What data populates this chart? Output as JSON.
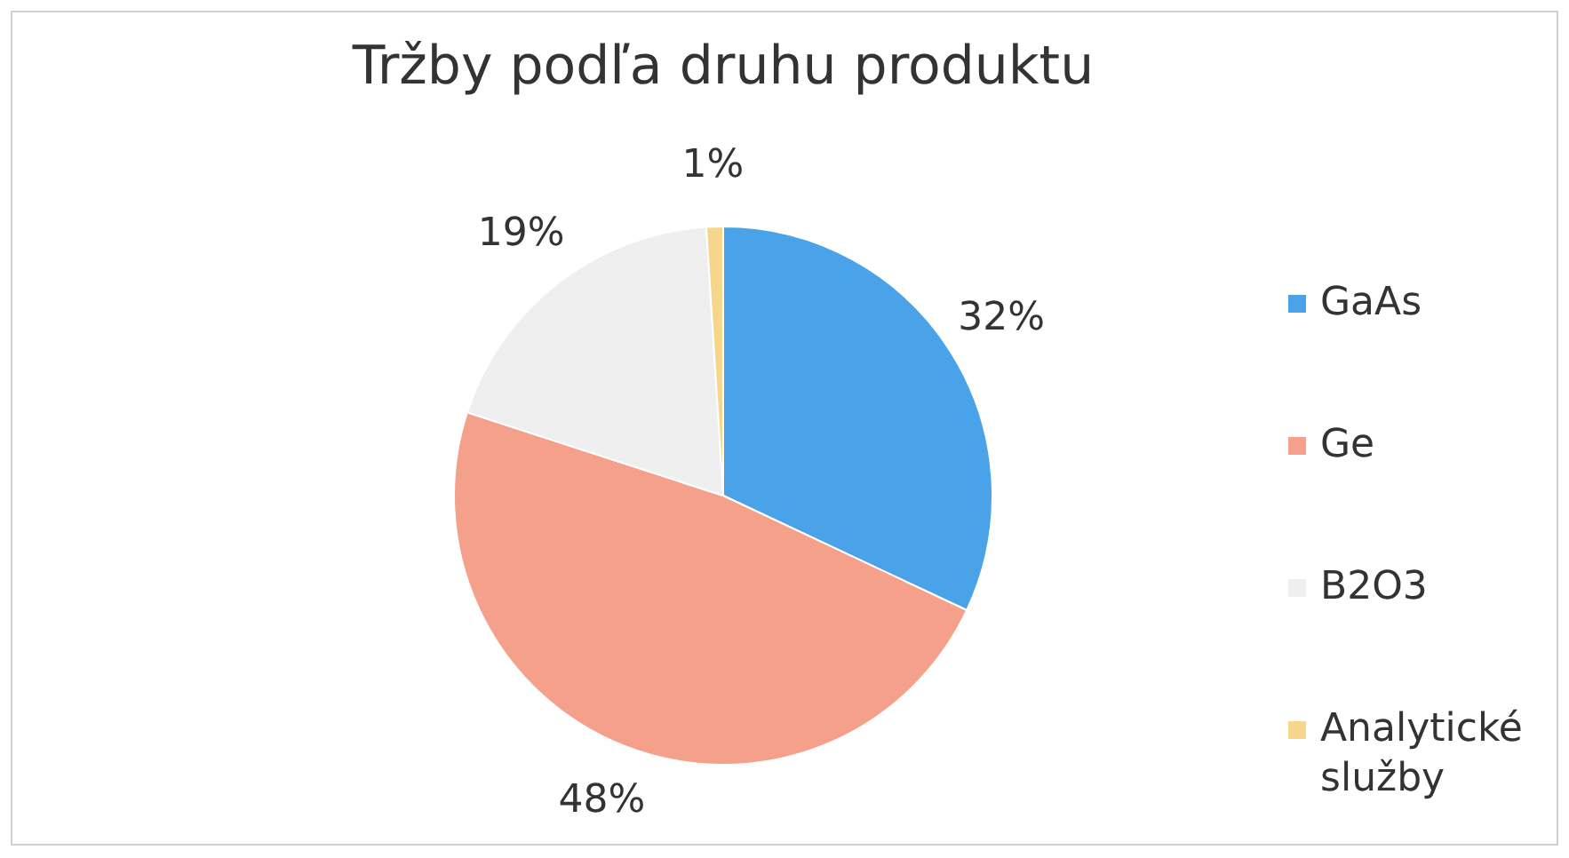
{
  "chart_data": {
    "type": "pie",
    "title": "Tržby podľa druhu produktu",
    "categories": [
      "GaAs",
      "Ge",
      "B2O3",
      "Analytické služby"
    ],
    "values": [
      32,
      48,
      19,
      1
    ],
    "colors": [
      "#4aa3e8",
      "#f4a08a",
      "#efefef",
      "#f5d68a"
    ],
    "value_labels": [
      "32%",
      "48%",
      "19%",
      "1%"
    ],
    "legend": "right"
  }
}
